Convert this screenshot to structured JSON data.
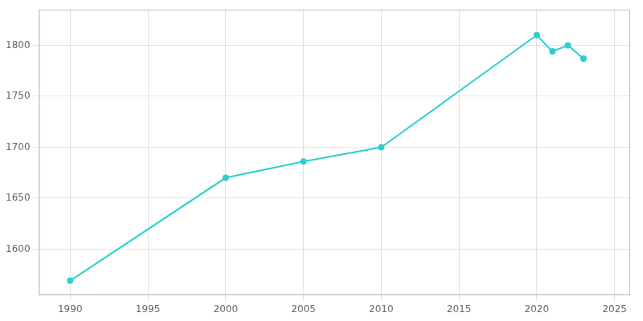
{
  "chart_data": {
    "type": "line",
    "x": [
      1990,
      2000,
      2005,
      2010,
      2020,
      2021,
      2022,
      2023
    ],
    "values": [
      1569,
      1670,
      1686,
      1700,
      1810,
      1794,
      1800,
      1787
    ],
    "color": "#2dcfcf",
    "marker": "circle",
    "xlim": [
      1988,
      2026
    ],
    "ylim": [
      1555,
      1835
    ],
    "xticks": [
      1990,
      1995,
      2000,
      2005,
      2010,
      2015,
      2020,
      2025
    ],
    "yticks": [
      1600,
      1650,
      1700,
      1750,
      1800
    ],
    "grid": true
  }
}
